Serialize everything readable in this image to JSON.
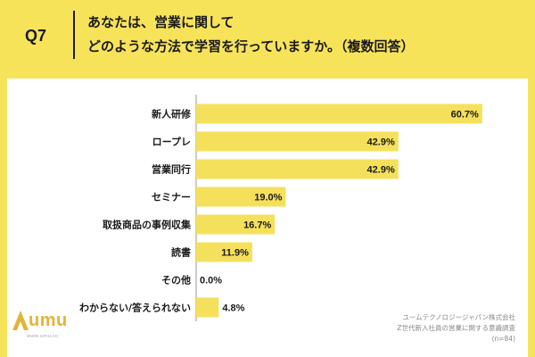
{
  "header": {
    "question_number": "Q7",
    "title_line1": "あなたは、営業に関して",
    "title_line2": "どのような方法で学習を行っていますか。（複数回答）"
  },
  "source": {
    "line1": "ユームテクノロジージャパン株式会社",
    "line2": "Z世代新入社員の営業に関する意識調査",
    "line3": "(n=84)"
  },
  "logo": {
    "text": "umu",
    "url_text": "www.umu.co"
  },
  "colors": {
    "background": "#f7e35a",
    "bar": "#f5e05c",
    "axis": "#9a9a9a",
    "text": "#1a1a1a"
  },
  "chart_data": {
    "type": "bar",
    "orientation": "horizontal",
    "categories": [
      "新人研修",
      "ロープレ",
      "営業同行",
      "セミナー",
      "取扱商品の事例収集",
      "読書",
      "その他",
      "わからない/答えられない"
    ],
    "values": [
      60.7,
      42.9,
      42.9,
      19.0,
      16.7,
      11.9,
      0.0,
      4.8
    ],
    "value_labels": [
      "60.7%",
      "42.9%",
      "42.9%",
      "19.0%",
      "16.7%",
      "11.9%",
      "0.0%",
      "4.8%"
    ],
    "xlim": [
      0,
      70
    ],
    "grid": false,
    "legend": "none"
  }
}
